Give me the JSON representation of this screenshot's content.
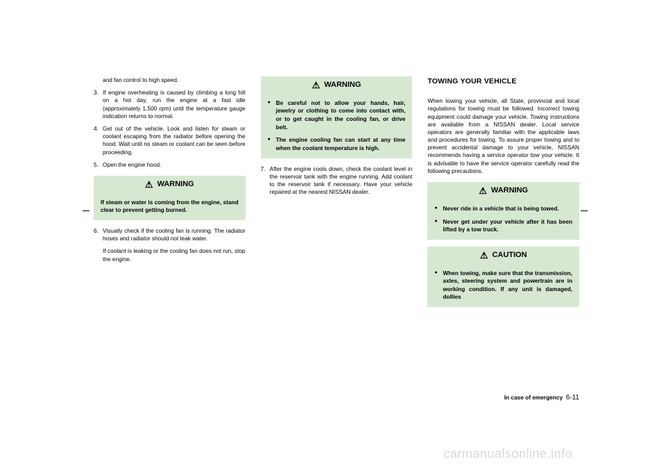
{
  "col1": {
    "orphan": "and fan control to high speed.",
    "items": [
      {
        "n": "3.",
        "text": "If engine overheating is caused by climbing a long hill on a hot day, run the engine at a fast idle (approximately 1,500 rpm) until the temperature gauge indication returns to normal."
      },
      {
        "n": "4.",
        "text": "Get out of the vehicle. Look and listen for steam or coolant escaping from the radiator before opening the hood. Wait until no steam or coolant can be seen before proceeding."
      },
      {
        "n": "5.",
        "text": "Open the engine hood."
      }
    ],
    "warning": {
      "title": "WARNING",
      "body": "If steam or water is coming from the engine, stand clear to prevent getting burned."
    },
    "items2": [
      {
        "n": "6.",
        "text": "Visually check if the cooling fan is running. The radiator hoses and radiator should not leak water.",
        "sub": "If coolant is leaking or the cooling fan does not run, stop the engine."
      }
    ]
  },
  "col2": {
    "warning": {
      "title": "WARNING",
      "bullets": [
        "Be careful not to allow your hands, hair, jewelry or clothing to come into contact with, or to get caught in the cooling fan, or drive belt.",
        "The engine cooling fan can start at any time when the coolant temperature is high."
      ]
    },
    "items": [
      {
        "n": "7.",
        "text": "After the engine cools down, check the coolant level in the reservoir tank with the engine running. Add coolant to the reservoir tank if necessary. Have your vehicle repaired at the nearest NISSAN dealer."
      }
    ]
  },
  "col3": {
    "title": "TOWING YOUR VEHICLE",
    "para": "When towing your vehicle, all State, provincial and local regulations for towing must be followed. Incorrect towing equipment could damage your vehicle. Towing instructions are available from a NISSAN dealer. Local service operators are generally familiar with the applicable laws and procedures for towing. To assure proper towing and to prevent accidental damage to your vehicle, NISSAN recommends having a service operator tow your vehicle. It is advisable to have the service operator carefully read the following precautions.",
    "warning": {
      "title": "WARNING",
      "bullets": [
        "Never ride in a vehicle that is being towed.",
        "Never get under your vehicle after it has been lifted by a tow truck."
      ]
    },
    "caution": {
      "title": "CAUTION",
      "bullets": [
        "When towing, make sure that the transmission, axles, steering system and powertrain are in working condition. If any unit is damaged, dollies"
      ]
    }
  },
  "footer": {
    "label": "In case of emergency",
    "page": "6-11"
  },
  "watermark": "carmanualsonline.info",
  "colors": {
    "alert_bg": "#d6e8d2",
    "watermark": "#d9d9d9"
  }
}
